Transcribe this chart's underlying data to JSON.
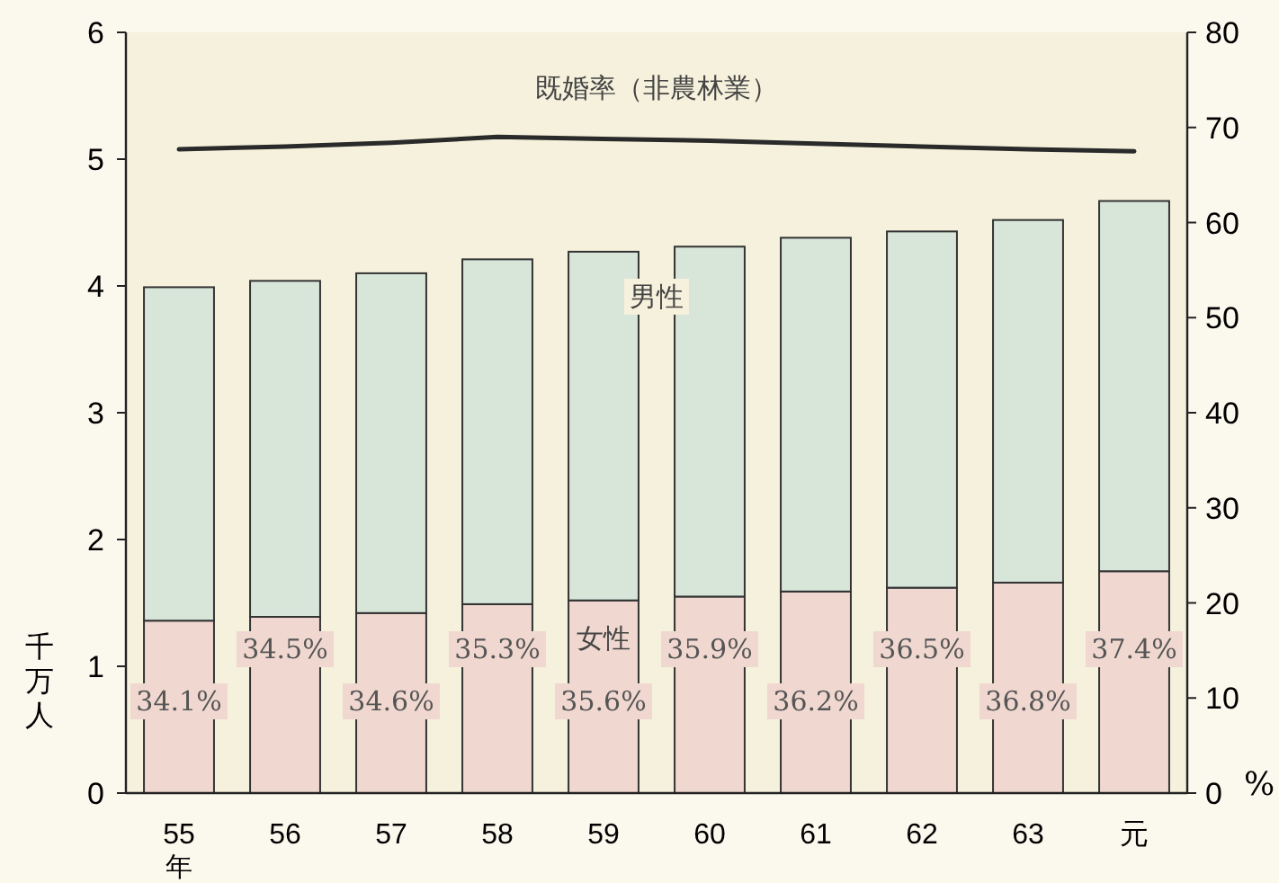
{
  "chart_data": {
    "type": "bar",
    "stacked": true,
    "categories": [
      "55",
      "56",
      "57",
      "58",
      "59",
      "60",
      "61",
      "62",
      "63",
      "元"
    ],
    "xlabel": "年",
    "ylabel": "千万人",
    "y2label": "%",
    "series": [
      {
        "name": "女性",
        "color": "#f0d8d0",
        "values": [
          1.36,
          1.39,
          1.42,
          1.49,
          1.52,
          1.55,
          1.59,
          1.62,
          1.66,
          1.75
        ]
      },
      {
        "name": "男性",
        "color": "#d8e6da",
        "values": [
          2.63,
          2.65,
          2.68,
          2.72,
          2.75,
          2.76,
          2.79,
          2.81,
          2.86,
          2.92
        ]
      },
      {
        "name": "既婚率（非農林業）",
        "type": "line",
        "axis": "y2",
        "color": "#2a2a2a",
        "values": [
          67.7,
          68.0,
          68.4,
          69.0,
          68.8,
          68.6,
          68.3,
          68.0,
          67.7,
          67.5
        ]
      }
    ],
    "annotations": [
      "34.1%",
      "34.5%",
      "34.6%",
      "35.3%",
      "35.6%",
      "35.9%",
      "36.2%",
      "36.5%",
      "36.8%",
      "37.4%"
    ],
    "ylim": [
      0,
      6
    ],
    "yticks": [
      0,
      1,
      2,
      3,
      4,
      5,
      6
    ],
    "y2lim": [
      0,
      80
    ],
    "y2ticks": [
      0,
      10,
      20,
      30,
      40,
      50,
      60,
      70,
      80
    ],
    "grid": false,
    "marker": "none",
    "line_style": "solid"
  }
}
